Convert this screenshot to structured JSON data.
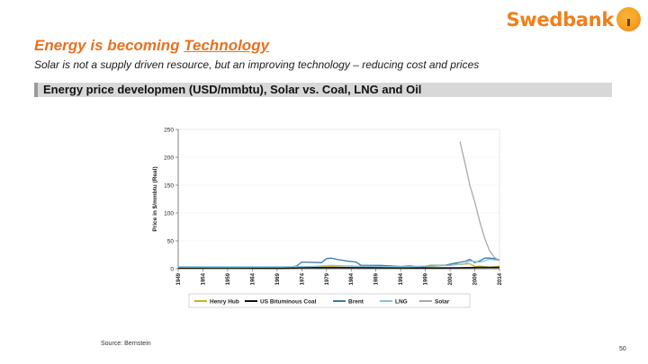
{
  "logo": {
    "text": "Swedbank",
    "icon": "oak-tree-logo-icon",
    "color": "#f07f1a"
  },
  "title": {
    "prefix": "Energy is becoming ",
    "highlight": "Technology"
  },
  "subtitle": "Solar is not a supply driven resource, but an improving technology – reducing cost and prices",
  "section_bar": "Energy price developmen (USD/mmbtu), Solar vs. Coal, LNG and Oil",
  "source": "Source: Bernstein",
  "page_number": "50",
  "chart_data": {
    "type": "line",
    "title": "",
    "xlabel": "",
    "ylabel": "Price in $/mmbtu (Real)",
    "xlim": [
      1949,
      2014
    ],
    "ylim": [
      0,
      250
    ],
    "yticks": [
      "0",
      "50",
      "100",
      "150",
      "200",
      "250"
    ],
    "xticks": [
      "1949",
      "1954",
      "1959",
      "1964",
      "1969",
      "1974",
      "1979",
      "1984",
      "1989",
      "1994",
      "1999",
      "2004",
      "2009",
      "2014"
    ],
    "legend_position": "bottom",
    "series": [
      {
        "name": "Henry Hub",
        "color": "#c9b51c",
        "x": [
          1949,
          1960,
          1970,
          1976,
          1980,
          1984,
          1990,
          1995,
          1998,
          2001,
          2003,
          2005,
          2006,
          2008,
          2009,
          2010,
          2012,
          2014
        ],
        "y": [
          0.5,
          0.7,
          0.8,
          2,
          4,
          5,
          2.5,
          2.2,
          2.5,
          4.5,
          6.5,
          9.5,
          7.5,
          9,
          4,
          4.5,
          2.8,
          4.5
        ]
      },
      {
        "name": "US Bituminous Coal",
        "color": "#111111",
        "x": [
          1949,
          1970,
          1975,
          1980,
          1990,
          2000,
          2005,
          2010,
          2014
        ],
        "y": [
          1.2,
          1.0,
          1.9,
          2.0,
          1.6,
          1.3,
          1.5,
          2.2,
          2.3
        ]
      },
      {
        "name": "Brent",
        "color": "#3a7aa5",
        "x": [
          1949,
          1960,
          1972,
          1973,
          1974,
          1978,
          1979,
          1980,
          1981,
          1983,
          1985,
          1986,
          1990,
          1994,
          1996,
          1998,
          2000,
          2003,
          2005,
          2007,
          2008,
          2009,
          2010,
          2011,
          2012,
          2013,
          2014
        ],
        "y": [
          2.5,
          2.2,
          3,
          5,
          12,
          11,
          18,
          19,
          17,
          14,
          12,
          6,
          6,
          4,
          5,
          3,
          6,
          6,
          10,
          13,
          17,
          11,
          14,
          19,
          19,
          18,
          16
        ]
      },
      {
        "name": "LNG",
        "color": "#86c2df",
        "x": [
          1949,
          1970,
          1976,
          1980,
          1985,
          1990,
          1995,
          2000,
          2004,
          2007,
          2008,
          2010,
          2012,
          2013,
          2014
        ],
        "y": [
          3.5,
          3.5,
          4,
          6,
          4.5,
          4,
          3.5,
          5,
          6,
          9,
          14,
          12,
          17,
          16,
          15
        ]
      },
      {
        "name": "Solar",
        "color": "#a7a9ac",
        "x": [
          2006,
          2007,
          2008,
          2009,
          2010,
          2011,
          2012,
          2013,
          2014
        ],
        "y": [
          228,
          190,
          150,
          120,
          85,
          55,
          32,
          20,
          15
        ]
      }
    ]
  }
}
